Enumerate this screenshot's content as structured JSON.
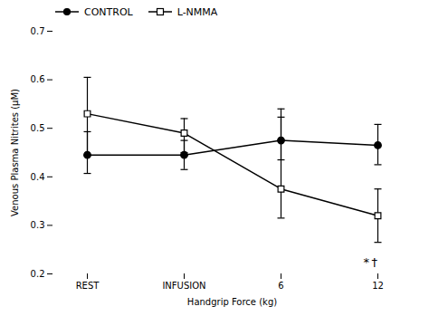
{
  "chart_data": {
    "type": "line",
    "xlabel": "Handgrip Force (kg)",
    "ylabel": "Venous Plasma Nitrites (μM)",
    "categories": [
      "REST",
      "INFUSION",
      "6",
      "12"
    ],
    "series": [
      {
        "name": "CONTROL",
        "color": "#000000",
        "marker": "circle",
        "values": [
          0.445,
          0.445,
          0.475,
          0.465
        ],
        "error_lower": [
          0.038,
          0.03,
          0.04,
          0.04
        ],
        "error_upper": [
          0.048,
          0.03,
          0.048,
          0.043
        ]
      },
      {
        "name": "L-NMMA",
        "color": "#000000",
        "marker": "square_open",
        "values": [
          0.53,
          0.49,
          0.375,
          0.32
        ],
        "error_lower": [
          0.085,
          0.04,
          0.06,
          0.055
        ],
        "error_upper": [
          0.075,
          0.03,
          0.165,
          0.055
        ]
      }
    ],
    "ylim": [
      0.2,
      0.7
    ],
    "yticks": [
      0.2,
      0.3,
      0.4,
      0.5,
      0.6,
      0.7
    ],
    "grid": false,
    "legend": "upper left",
    "annotations": [
      {
        "text": "*",
        "x": "12",
        "y": 0.215
      },
      {
        "text": "†",
        "x": "12",
        "y": 0.215
      }
    ]
  }
}
